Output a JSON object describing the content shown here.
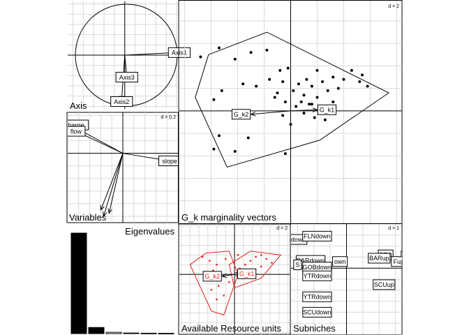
{
  "panels": {
    "axis": {
      "title": "Axis",
      "labels": [
        "Axis1",
        "Axis2",
        "Axis3"
      ]
    },
    "variables": {
      "title": "Variables",
      "scale": "d = 0.2",
      "labels": [
        "discharge",
        "flow",
        "slope"
      ]
    },
    "main": {
      "title": "G_k marginality vectors",
      "scale": "d = 2",
      "labels": [
        "G_k1",
        "G_k2"
      ]
    },
    "eigen": {
      "title": "Eigenvalues"
    },
    "resource": {
      "title": "Available Resource units",
      "scale": "d = 2",
      "labels": [
        "G_k1",
        "G_k2"
      ]
    },
    "subniches": {
      "title": "Subniches",
      "scale": "d = 1"
    }
  },
  "chart_data": [
    {
      "panel": "axis",
      "type": "correlation-circle",
      "vectors": [
        {
          "name": "Axis1",
          "x": 0.97,
          "y": 0.05
        },
        {
          "name": "Axis2",
          "x": -0.06,
          "y": -0.88
        },
        {
          "name": "Axis3",
          "x": 0.04,
          "y": -0.43
        }
      ],
      "grid": true
    },
    {
      "panel": "variables",
      "type": "biplot-vectors",
      "vectors": [
        {
          "name": "discharge",
          "x": -0.95,
          "y": 0.45
        },
        {
          "name": "flow",
          "x": -0.85,
          "y": 0.35
        },
        {
          "name": "slope",
          "x": 0.85,
          "y": -0.12
        },
        {
          "name": "",
          "x": -0.4,
          "y": -0.9
        },
        {
          "name": "",
          "x": -0.35,
          "y": -1.0
        },
        {
          "name": "",
          "x": -0.25,
          "y": -0.95
        }
      ],
      "xlim": [
        -1,
        1
      ],
      "ylim": [
        -1.1,
        0.65
      ],
      "grid": true
    },
    {
      "panel": "main",
      "type": "scatter",
      "points": [
        [
          -3.4,
          2.4
        ],
        [
          -2.7,
          2.8
        ],
        [
          -2.1,
          2.3
        ],
        [
          -1.5,
          2.6
        ],
        [
          -0.9,
          2.7
        ],
        [
          -0.4,
          1.8
        ],
        [
          -1.8,
          1.2
        ],
        [
          -1.3,
          1.1
        ],
        [
          -0.8,
          1.4
        ],
        [
          -0.5,
          0.8
        ],
        [
          -0.3,
          1.3
        ],
        [
          -0.2,
          0.4
        ],
        [
          0.1,
          0.9
        ],
        [
          0.3,
          1.2
        ],
        [
          0.5,
          0.7
        ],
        [
          0.6,
          1.4
        ],
        [
          0.8,
          1.1
        ],
        [
          1.0,
          0.6
        ],
        [
          1.2,
          1.3
        ],
        [
          1.4,
          0.9
        ],
        [
          1.6,
          1.5
        ],
        [
          1.8,
          1.0
        ],
        [
          2.0,
          1.4
        ],
        [
          2.3,
          1.8
        ],
        [
          2.6,
          1.3
        ],
        [
          0.2,
          0.2
        ],
        [
          0.5,
          -0.1
        ],
        [
          0.7,
          0.3
        ],
        [
          0.9,
          -0.3
        ],
        [
          1.1,
          0.2
        ],
        [
          1.3,
          -0.4
        ],
        [
          1.6,
          0.4
        ],
        [
          0.0,
          -0.6
        ],
        [
          -0.3,
          -0.2
        ],
        [
          -2.6,
          0.9
        ],
        [
          -2.9,
          0.5
        ],
        [
          -2.7,
          -1.1
        ],
        [
          -2.9,
          -1.7
        ],
        [
          -2.1,
          -1.8
        ],
        [
          -1.6,
          -1.2
        ],
        [
          -0.2,
          -1.9
        ],
        [
          -0.1,
          1.9
        ],
        [
          1.0,
          1.8
        ],
        [
          2.7,
          1.6
        ],
        [
          2.9,
          1.1
        ],
        [
          0.8,
          0.3
        ],
        [
          0.4,
          0.4
        ],
        [
          -0.6,
          0.6
        ]
      ],
      "hull": [
        [
          -3.6,
          0.6
        ],
        [
          -3.1,
          2.5
        ],
        [
          -0.9,
          3.5
        ],
        [
          3.7,
          0.8
        ],
        [
          1.1,
          -1.3
        ],
        [
          -2.4,
          -2.5
        ]
      ],
      "arrows": [
        {
          "name": "G_k1",
          "x": 1.0,
          "y": 0.05
        },
        {
          "name": "G_k2",
          "x": -1.5,
          "y": -0.15
        }
      ],
      "xlim": [
        -4.2,
        4.2
      ],
      "ylim": [
        -5.0,
        4.9
      ],
      "grid": true
    },
    {
      "panel": "eigen",
      "type": "bar",
      "values": [
        100,
        6.1,
        1.3,
        0.6,
        0.4,
        0.3
      ],
      "ylim": [
        0,
        100
      ]
    },
    {
      "panel": "resource",
      "type": "scatter",
      "points": [
        [
          -1.8,
          0.9
        ],
        [
          -1.4,
          0.7
        ],
        [
          -1.2,
          0.2
        ],
        [
          -1.0,
          0.5
        ],
        [
          -0.8,
          0.1
        ],
        [
          -0.5,
          0.8
        ],
        [
          -0.3,
          -0.4
        ],
        [
          -0.6,
          -1.1
        ],
        [
          -1.0,
          -1.3
        ],
        [
          -1.3,
          -0.8
        ],
        [
          0.3,
          0.3
        ],
        [
          0.6,
          0.5
        ],
        [
          0.9,
          0.7
        ],
        [
          1.2,
          0.9
        ],
        [
          1.5,
          1.0
        ],
        [
          1.8,
          0.8
        ],
        [
          2.1,
          0.6
        ],
        [
          1.1,
          0.2
        ],
        [
          0.5,
          -0.2
        ],
        [
          0.9,
          -0.1
        ],
        [
          1.5,
          0.4
        ],
        [
          -1.6,
          -0.2
        ],
        [
          -0.9,
          -0.6
        ],
        [
          0.2,
          1.0
        ]
      ],
      "hulls": [
        [
          [
            -2.5,
            0.5
          ],
          [
            -1.6,
            1.1
          ],
          [
            -0.3,
            1.2
          ],
          [
            0.2,
            0.0
          ],
          [
            -0.6,
            -2.1
          ],
          [
            -1.3,
            -1.9
          ]
        ],
        [
          [
            -0.3,
            0.5
          ],
          [
            0.9,
            1.2
          ],
          [
            2.6,
            1.0
          ],
          [
            1.5,
            -0.2
          ],
          [
            0.0,
            -0.7
          ]
        ]
      ],
      "arrows": [
        {
          "name": "G_k1",
          "x": 0.3,
          "y": 0.03
        },
        {
          "name": "G_k2",
          "x": -0.7,
          "y": -0.1
        }
      ],
      "xlim": [
        -3.1,
        3.1
      ],
      "ylim": [
        -3.1,
        2.6
      ],
      "grid": true
    },
    {
      "panel": "subniches",
      "type": "labels",
      "labels": [
        {
          "name": "ASdown",
          "x": -1.6,
          "y": 1.3
        },
        {
          "name": "FLNdown",
          "x": -0.9,
          "y": 1.45
        },
        {
          "name": "BARdown",
          "x": -1.1,
          "y": 0.35
        },
        {
          "name": "S",
          "x": -1.5,
          "y": 0.15
        },
        {
          "name": "own",
          "x": -0.2,
          "y": 0.3
        },
        {
          "name": "GOBdown",
          "x": -0.9,
          "y": 0.05
        },
        {
          "name": "YTRdown",
          "x": -0.9,
          "y": -0.35
        },
        {
          "name": "YTRdown",
          "x": -0.9,
          "y": -1.3
        },
        {
          "name": "SCUdown",
          "x": -0.9,
          "y": -2.0
        },
        {
          "name": "BTO",
          "x": 1.2,
          "y": 0.6
        },
        {
          "name": "BARup",
          "x": 1.0,
          "y": 0.45
        },
        {
          "name": "Bup",
          "x": 1.9,
          "y": 0.55
        },
        {
          "name": "Fup",
          "x": 1.6,
          "y": 0.3
        },
        {
          "name": "SCUup",
          "x": 1.15,
          "y": -0.75
        }
      ],
      "xlim": [
        -1.7,
        1.7
      ],
      "ylim": [
        -3.0,
        2.0
      ],
      "grid": true
    }
  ]
}
